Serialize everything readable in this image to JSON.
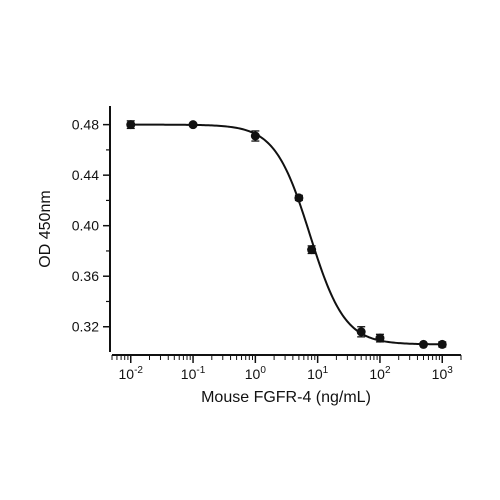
{
  "chart_data": {
    "type": "scatter",
    "title": "",
    "xlabel": "Mouse FGFR-4 (ng/mL)",
    "ylabel": "OD 450nm",
    "x_scale": "log",
    "xlim": [
      0.005,
      2000
    ],
    "ylim": [
      0.3,
      0.49
    ],
    "x_ticks": [
      {
        "value": 0.01,
        "base": "10",
        "exp": "-2"
      },
      {
        "value": 0.1,
        "base": "10",
        "exp": "-1"
      },
      {
        "value": 1,
        "base": "10",
        "exp": "0"
      },
      {
        "value": 10,
        "base": "10",
        "exp": "1"
      },
      {
        "value": 100,
        "base": "10",
        "exp": "2"
      },
      {
        "value": 1000,
        "base": "10",
        "exp": "3"
      }
    ],
    "y_ticks": [
      {
        "value": 0.32,
        "label": "0.32"
      },
      {
        "value": 0.36,
        "label": "0.36"
      },
      {
        "value": 0.4,
        "label": "0.40"
      },
      {
        "value": 0.44,
        "label": "0.44"
      },
      {
        "value": 0.48,
        "label": "0.48"
      }
    ],
    "grid": false,
    "legend": "none",
    "series": [
      {
        "points": [
          {
            "x": 0.01,
            "y": 0.48,
            "err": 0.003
          },
          {
            "x": 0.1,
            "y": 0.48,
            "err": 0.001
          },
          {
            "x": 1,
            "y": 0.471,
            "err": 0.004
          },
          {
            "x": 5,
            "y": 0.422,
            "err": 0.002
          },
          {
            "x": 8,
            "y": 0.381,
            "err": 0.003
          },
          {
            "x": 50,
            "y": 0.316,
            "err": 0.004
          },
          {
            "x": 100,
            "y": 0.311,
            "err": 0.003
          },
          {
            "x": 500,
            "y": 0.306,
            "err": 0.001
          },
          {
            "x": 1000,
            "y": 0.306,
            "err": 0.002
          }
        ],
        "fit": {
          "model": "4PL",
          "top": 0.48,
          "bottom": 0.306,
          "ec50": 7.5,
          "hill": 1.55
        }
      }
    ],
    "colors": {
      "marker": "#111111",
      "line": "#111111",
      "axis": "#111111"
    }
  }
}
